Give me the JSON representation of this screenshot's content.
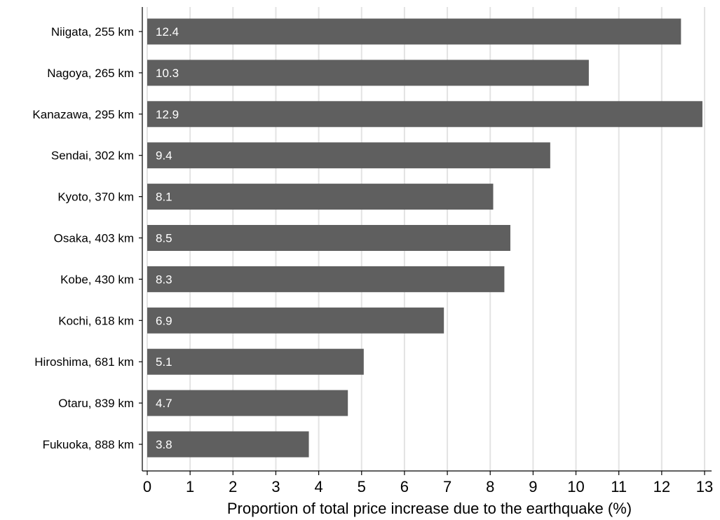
{
  "chart_data": {
    "type": "bar",
    "orientation": "horizontal",
    "categories": [
      "Niigata, 255 km",
      "Nagoya, 265 km",
      "Kanazawa, 295 km",
      "Sendai, 302 km",
      "Kyoto, 370 km",
      "Osaka, 403 km",
      "Kobe, 430 km",
      "Kochi, 618 km",
      "Hiroshima, 681 km",
      "Otaru, 839 km",
      "Fukuoka, 888 km"
    ],
    "values": [
      12.45,
      10.3,
      12.95,
      9.4,
      8.07,
      8.47,
      8.33,
      6.92,
      5.05,
      4.68,
      3.77
    ],
    "data_labels": [
      "12.4",
      "10.3",
      "12.9",
      "9.4",
      "8.1",
      "8.5",
      "8.3",
      "6.9",
      "5.1",
      "4.7",
      "3.8"
    ],
    "xlabel": "Proportion of total price increase due to the earthquake (%)",
    "ylabel": "",
    "title": "",
    "xlim": [
      0,
      13
    ],
    "xticks": [
      0,
      1,
      2,
      3,
      4,
      5,
      6,
      7,
      8,
      9,
      10,
      11,
      12,
      13
    ],
    "grid": "vertical",
    "colors": {
      "bar": "#5f5f5f",
      "grid": "#e3e3e3",
      "label": "#ffffff"
    }
  }
}
